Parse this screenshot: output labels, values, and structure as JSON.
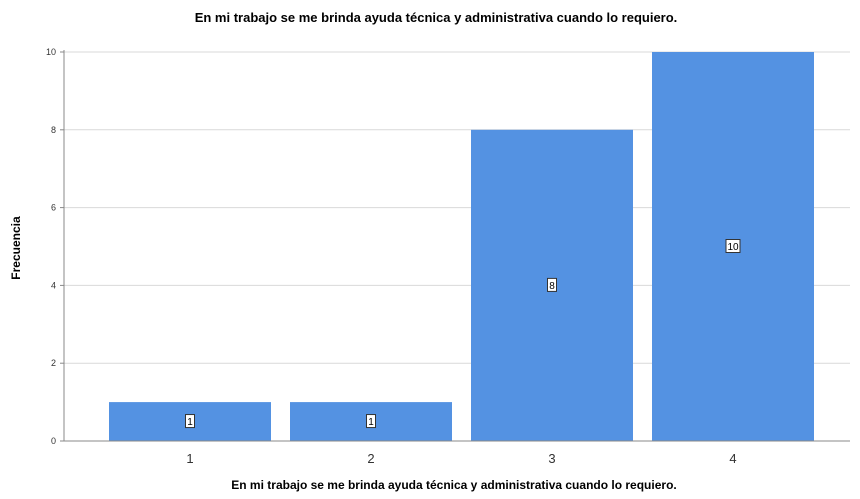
{
  "chart_data": {
    "type": "bar",
    "title": "En mi trabajo se me brinda ayuda técnica y administrativa cuando lo requiero.",
    "xlabel": "En mi trabajo se me brinda ayuda técnica y administrativa cuando lo requiero.",
    "ylabel": "Frecuencia",
    "categories": [
      "1",
      "2",
      "3",
      "4"
    ],
    "values": [
      1,
      1,
      8,
      10
    ],
    "data_labels": [
      "1",
      "1",
      "8",
      "10"
    ],
    "ylim": [
      0,
      10
    ],
    "yticks": [
      0,
      2,
      4,
      6,
      8,
      10
    ],
    "grid": true,
    "legend": "none",
    "colors": {
      "bar": "#5492e2",
      "grid": "#d9d9d9",
      "axis": "#888888"
    }
  }
}
